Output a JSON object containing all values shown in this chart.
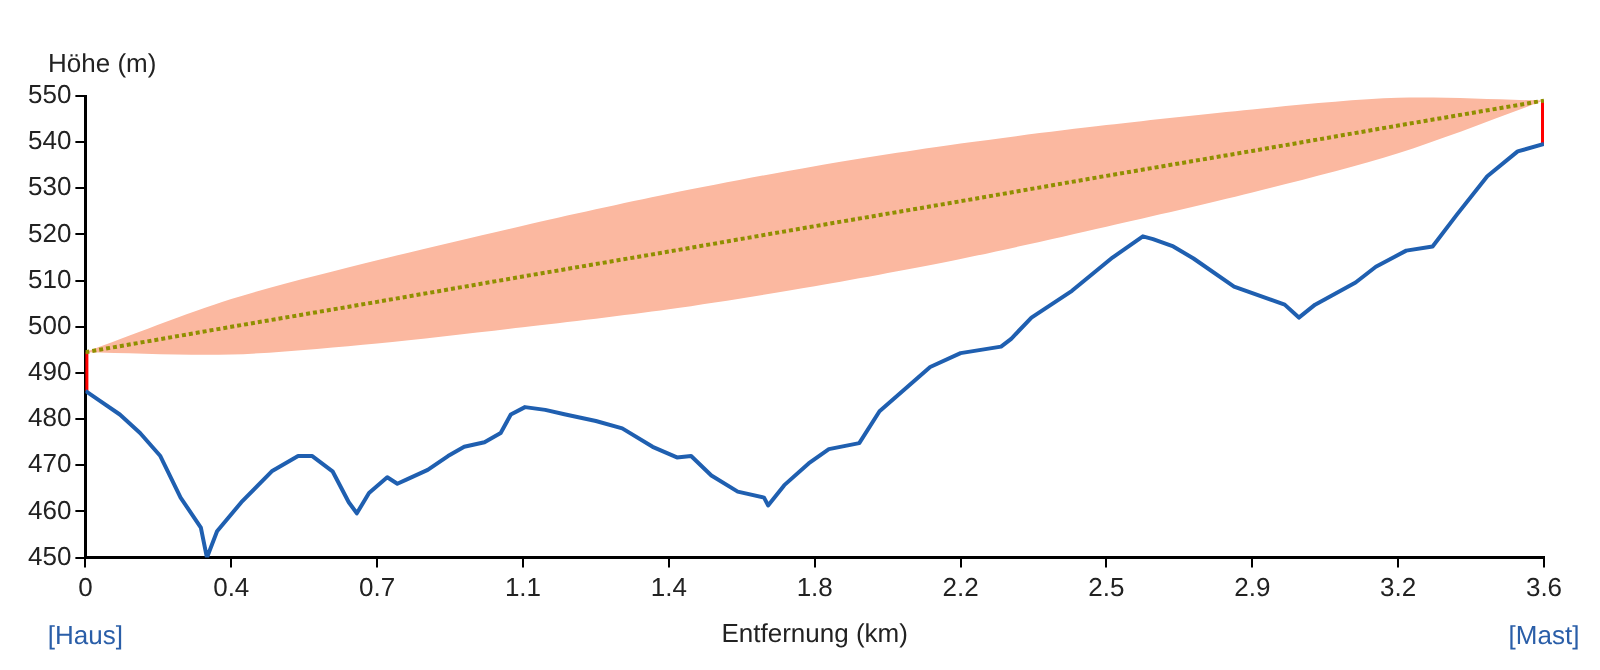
{
  "chart_data": {
    "type": "line",
    "xlabel": "Entfernung (km)",
    "ylabel": "Höhe (m)",
    "xlim": [
      0,
      3.6
    ],
    "ylim": [
      450,
      550
    ],
    "xticks": [
      0,
      {
        "value": 0.36,
        "label": "0.4"
      },
      {
        "value": 0.72,
        "label": "0.7"
      },
      {
        "value": 1.08,
        "label": "1.1"
      },
      {
        "value": 1.44,
        "label": "1.4"
      },
      1.8,
      {
        "value": 2.16,
        "label": "2.2"
      },
      {
        "value": 2.52,
        "label": "2.5"
      },
      {
        "value": 2.88,
        "label": "2.9"
      },
      {
        "value": 3.24,
        "label": "3.2"
      },
      3.6
    ],
    "yticks": [
      450,
      460,
      470,
      480,
      490,
      500,
      510,
      520,
      530,
      540,
      550
    ],
    "grid": false,
    "legend": false,
    "marker": "none",
    "annotations": [
      "[Haus]",
      "[Mast]"
    ],
    "series": [
      {
        "type": "line",
        "color": "#8f8f00",
        "line_style": "dotted",
        "x": [
          0,
          0.36,
          0.72,
          1.08,
          1.44,
          1.8,
          2.16,
          2.52,
          2.88,
          3.24,
          3.6
        ],
        "values": [
          494.5,
          500,
          505.4,
          510.9,
          516.3,
          521.8,
          527.2,
          532.7,
          538.1,
          543.6,
          549
        ],
        "upper": [
          494.5,
          506,
          514.4,
          521.9,
          528.8,
          534.8,
          539.7,
          543.7,
          547.1,
          549.6,
          549
        ],
        "lower": [
          494.5,
          494,
          496.4,
          499.9,
          503.8,
          508.8,
          514.7,
          521.7,
          529.1,
          537.6,
          549
        ]
      },
      {
        "type": "line",
        "color": "#1f5fb0",
        "line_style": "solid",
        "x": [
          0,
          0.035,
          0.085,
          0.135,
          0.185,
          0.235,
          0.285,
          0.3,
          0.325,
          0.385,
          0.46,
          0.525,
          0.56,
          0.61,
          0.65,
          0.67,
          0.7,
          0.745,
          0.77,
          0.795,
          0.845,
          0.895,
          0.935,
          0.985,
          1.025,
          1.05,
          1.085,
          1.135,
          1.185,
          1.26,
          1.325,
          1.4,
          1.46,
          1.495,
          1.545,
          1.61,
          1.675,
          1.685,
          1.725,
          1.785,
          1.835,
          1.91,
          1.96,
          2.085,
          2.16,
          2.26,
          2.285,
          2.335,
          2.435,
          2.535,
          2.61,
          2.635,
          2.685,
          2.735,
          2.835,
          2.96,
          2.995,
          3.035,
          3.135,
          3.185,
          3.26,
          3.325,
          3.385,
          3.46,
          3.535,
          3.6
        ],
        "values": [
          486.1,
          484,
          481,
          477,
          472,
          463,
          456.5,
          450,
          455.7,
          462,
          468.7,
          472,
          472,
          468.7,
          462,
          459.6,
          464,
          467.4,
          466,
          467,
          469,
          472,
          474,
          475,
          477,
          481,
          482.6,
          482,
          481,
          479.6,
          478,
          474,
          471.7,
          472,
          467.8,
          464.3,
          463,
          461.3,
          465.7,
          470.4,
          473.5,
          474.8,
          481.7,
          491.3,
          494.3,
          495.7,
          497.4,
          502,
          507.8,
          515,
          519.6,
          519,
          517.4,
          514.8,
          508.7,
          504.8,
          502,
          504.8,
          509.6,
          513,
          516.5,
          517.4,
          524.3,
          532.6,
          538,
          539.6
        ]
      },
      {
        "type": "line",
        "color": "#ff0000",
        "line_style": "solid",
        "x": [
          0,
          0
        ],
        "values": [
          486.1,
          494.5
        ]
      },
      {
        "type": "line",
        "color": "#ff0000",
        "line_style": "solid",
        "x": [
          3.6,
          3.6
        ],
        "values": [
          539.6,
          549
        ]
      }
    ]
  }
}
